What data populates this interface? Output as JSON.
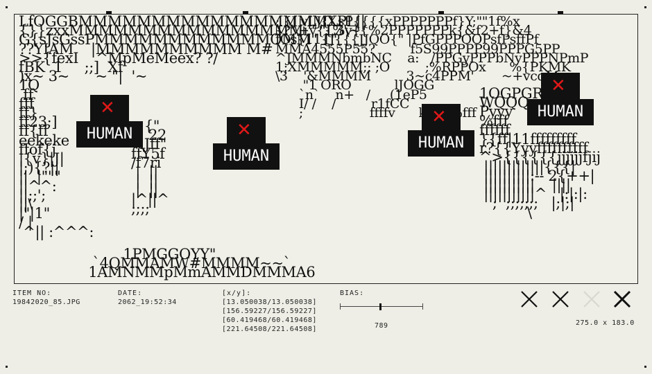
{
  "viewport": {
    "art_left": "LfOGGBMMMMMMMMMMMMMMMMMXPL||\n{}}zxxMMMMMMMMMMMMMMMMi''.\"L3\\~\nG{sJsGssPMMMMMMMMMMMMOMM\" 1\"\n??YIAM    |MMMMMMMMMM M#\n>>{fexI    ^MpMeMeex? ?/\nfBK  1     ;;]  Xf\n)x~ 3~      ~ \"|  '~\n1Q\n ff\nfff\nff}\nff23;]\nff{ff\neekeke\nffof{j\n|{v}|J|\n|;){?||\n||  |\"\"\"\n||^^:\n||;;';\n||\\\n|\"|1\"\n/ |\n ^|| :^^^:",
    "art_mid": "; {J vLJ{LsP{{{{xPPPPPPPf}Y;\"\"1f%x\n{? \\+v{{%v{{%2PPPPPPPk{&f2+f}&4\nfOs{11{J{{{JJQO{\" |PfGPPPOOPsfPsffPf\nMMA4555P55?         f5S99PPPP99PPPG5PP\n^JMMMNbmbNC    a:   /PPGyPPPbNyPPPNPmP\n1;XMMMMM;; ;O         ;%RPPOx      %{PKMK\n\\3    '&MMMM         3~c4PPM'       ~+vcqM\n       \"1 ORO           lJOGG\n      `n`    n+   /     (1eP5\n      I/ /    /         r1fCC\n      ;                 ffffv      kk11%fff\n",
    "art_right": "1OGPGR\nWQQQ\nPyyy\n%fff\nffffff\n}{ff|11fffffffff\nr?{{Yyyffffffffff\n^>{{{{{{jjjjjjfjij\n |||||||||||||{{{|\n ||||||||||:-- 2{++|\n |||||||||||    ||||\n |||||||||||^   |:|:|:\n   ;  ;;;;;;;   |;|;|\n           \\",
    "art_center": "   {\"\n    22\n  lJff\"\nffY5f\n/f7ri\n |  ||\n |  ||\n |  ||\n|^||^\n;;;;\n",
    "art_bottom": "         1PMGGOYY\"\n  `4QMMAMW#MMMM~~`\n 1AMNMMpMmAMMDMMMA6",
    "humans": [
      {
        "label": "HUMAN"
      },
      {
        "label": "HUMAN"
      },
      {
        "label": "HUMAN"
      },
      {
        "label": "HUMAN"
      }
    ]
  },
  "meta": {
    "item_label": "ITEM NO:",
    "item_value": "19842020_85.JPG",
    "date_label": "DATE:",
    "date_value": "2062_19:52:34",
    "xy_label": "[x/y]:",
    "xy_values": [
      "[13.050038/13.050038]",
      "[156.59227/156.59227]",
      "[60.419468/60.419468]",
      "[221.64508/221.64508]"
    ],
    "bias_label": "BIAS:",
    "bias_value": "789",
    "bias_level": 0.48,
    "dimensions": "275.0 x 183.0"
  },
  "controls": {
    "close_icons": [
      "close-icon",
      "close-icon",
      "close-icon-faded",
      "close-icon"
    ]
  },
  "colors": {
    "background": "#eeeee6",
    "ink": "#111111",
    "x_mark": "#e01818"
  }
}
